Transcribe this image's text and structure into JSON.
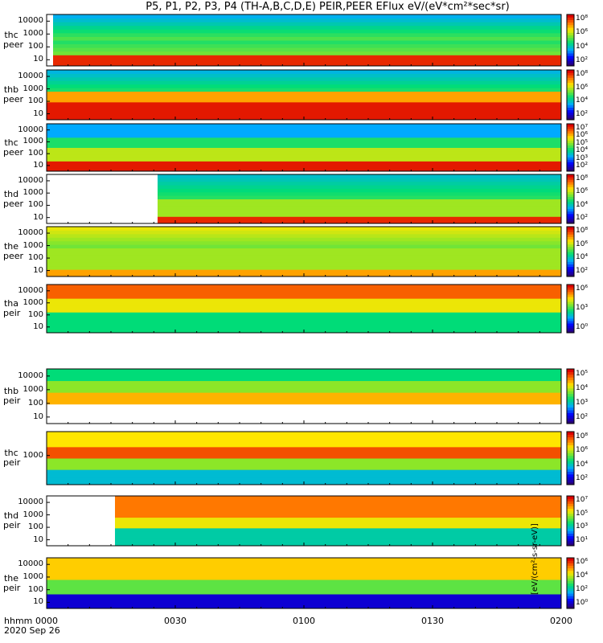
{
  "title": "P5, P1, P2, P3, P4 (TH-A,B,C,D,E) PEIR,PEER EFlux eV/(eV*cm²*sec*sr)",
  "x_axis": {
    "label_line1": "hhmm",
    "label_line2": "2020 Sep 26",
    "ticks": [
      "0000",
      "0030",
      "0100",
      "0130",
      "0200"
    ]
  },
  "colorbar_unit": "[eV/(cm²-s-sr-eV)]",
  "chart_data": [
    {
      "type": "heatmap",
      "ylabel": "thc\npeer",
      "yticks": [
        "10",
        "100",
        "1000",
        "10000"
      ],
      "cbar_ticks": [
        "10²",
        "10⁴",
        "10⁶",
        "10⁸"
      ],
      "y_log": true
    },
    {
      "type": "heatmap",
      "ylabel": "thb\npeer",
      "yticks": [
        "10",
        "100",
        "1000",
        "10000"
      ],
      "cbar_ticks": [
        "10²",
        "10⁴",
        "10⁶",
        "10⁸"
      ],
      "y_log": true
    },
    {
      "type": "heatmap",
      "ylabel": "thc\npeer",
      "yticks": [
        "10",
        "100",
        "1000",
        "10000"
      ],
      "cbar_ticks": [
        "10²",
        "10³",
        "10⁴",
        "10⁵",
        "10⁶",
        "10⁷"
      ],
      "y_log": true
    },
    {
      "type": "heatmap",
      "ylabel": "thd\npeer",
      "yticks": [
        "10",
        "100",
        "1000",
        "10000"
      ],
      "cbar_ticks": [
        "10²",
        "10⁴",
        "10⁶",
        "10⁸"
      ],
      "y_log": true
    },
    {
      "type": "heatmap",
      "ylabel": "the\npeer",
      "yticks": [
        "10",
        "100",
        "1000",
        "10000"
      ],
      "cbar_ticks": [
        "10²",
        "10⁴",
        "10⁶",
        "10⁸"
      ],
      "y_log": true
    },
    {
      "type": "heatmap",
      "ylabel": "tha\npeir",
      "yticks": [
        "10",
        "100",
        "1000",
        "10000"
      ],
      "cbar_ticks": [
        "10⁰",
        "10³",
        "10⁶"
      ],
      "y_log": true
    },
    {
      "type": "heatmap",
      "ylabel": "thb\npeir",
      "yticks": [
        "10",
        "100",
        "1000",
        "10000"
      ],
      "cbar_ticks": [
        "10²",
        "10³",
        "10⁴",
        "10⁵"
      ],
      "y_log": true
    },
    {
      "type": "heatmap",
      "ylabel": "thc\npeir",
      "yticks": [
        "1000"
      ],
      "cbar_ticks": [
        "10²",
        "10⁴",
        "10⁶",
        "10⁸"
      ],
      "y_log": true
    },
    {
      "type": "heatmap",
      "ylabel": "thd\npeir",
      "yticks": [
        "10",
        "100",
        "1000",
        "10000"
      ],
      "cbar_ticks": [
        "10¹",
        "10³",
        "10⁵",
        "10⁷"
      ],
      "y_log": true
    },
    {
      "type": "heatmap",
      "ylabel": "the\npeir",
      "yticks": [
        "10",
        "100",
        "1000",
        "10000"
      ],
      "cbar_ticks": [
        "10⁰",
        "10²",
        "10⁴",
        "10⁶"
      ],
      "y_log": true
    }
  ]
}
